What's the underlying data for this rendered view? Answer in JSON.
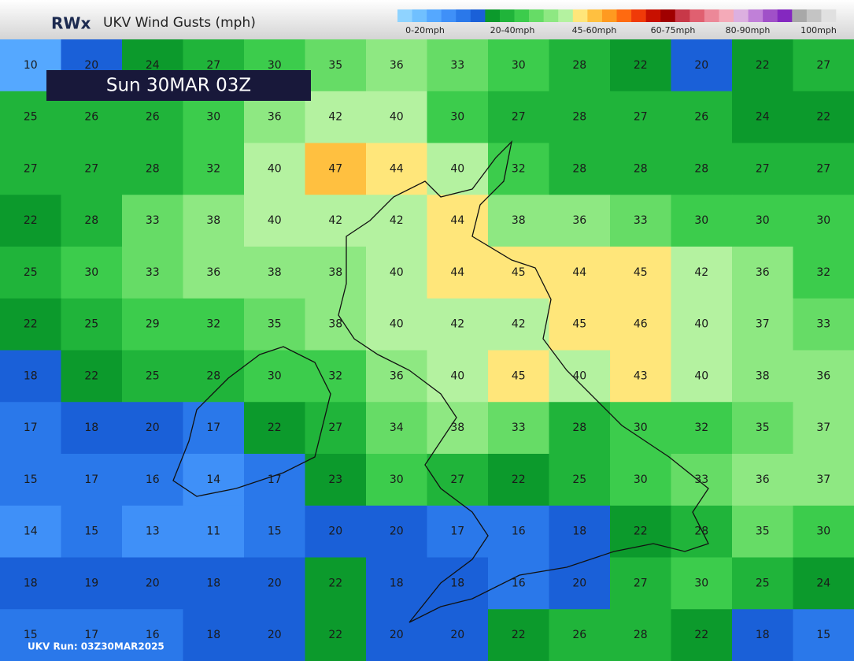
{
  "header": {
    "logo": "RWx",
    "title": "UKV Wind Gusts (mph)"
  },
  "legend": {
    "colors": [
      "#8fd3ff",
      "#70c0ff",
      "#55a8ff",
      "#3f90f8",
      "#2a78ea",
      "#1a60d8",
      "#0c9a2c",
      "#20b43a",
      "#3ccc4c",
      "#66dc66",
      "#8ee882",
      "#b4f2a0",
      "#ffe67a",
      "#ffc040",
      "#ff9a20",
      "#ff6a10",
      "#f03a08",
      "#c81000",
      "#a00000",
      "#c83848",
      "#e06070",
      "#ec8898",
      "#f4aab8",
      "#dcb0e0",
      "#c080d8",
      "#a050c8",
      "#8428c0",
      "#a8a8a8",
      "#c4c4c4",
      "#e0e0e0"
    ],
    "labels": [
      "0-20mph",
      "20-40mph",
      "45-60mph",
      "60-75mph",
      "80-90mph",
      "100mph"
    ]
  },
  "valid_time": "Sun 30MAR 03Z",
  "run": "UKV Run: 03Z30MAR2025",
  "grid": [
    [
      10,
      20,
      24,
      27,
      30,
      35,
      36,
      33,
      30,
      28,
      22,
      20,
      22,
      27
    ],
    [
      25,
      26,
      26,
      30,
      36,
      42,
      40,
      30,
      27,
      28,
      27,
      26,
      24,
      22
    ],
    [
      27,
      27,
      28,
      32,
      40,
      47,
      44,
      40,
      32,
      28,
      28,
      28,
      27,
      27
    ],
    [
      22,
      28,
      33,
      38,
      40,
      42,
      42,
      44,
      38,
      36,
      33,
      30,
      30,
      30
    ],
    [
      25,
      30,
      33,
      36,
      38,
      38,
      40,
      44,
      45,
      44,
      45,
      42,
      36,
      32
    ],
    [
      22,
      25,
      29,
      32,
      35,
      38,
      40,
      42,
      42,
      45,
      46,
      40,
      37,
      33
    ],
    [
      18,
      22,
      25,
      28,
      30,
      32,
      36,
      40,
      45,
      40,
      43,
      40,
      38,
      36
    ],
    [
      17,
      18,
      20,
      17,
      22,
      27,
      34,
      38,
      33,
      28,
      30,
      32,
      35,
      37
    ],
    [
      15,
      17,
      16,
      14,
      17,
      23,
      30,
      27,
      22,
      25,
      30,
      33,
      36,
      37
    ],
    [
      14,
      15,
      13,
      11,
      15,
      20,
      20,
      17,
      16,
      18,
      22,
      28,
      35,
      30
    ],
    [
      18,
      19,
      20,
      18,
      20,
      22,
      18,
      18,
      16,
      20,
      27,
      30,
      25,
      24
    ],
    [
      15,
      17,
      16,
      18,
      20,
      22,
      20,
      20,
      22,
      26,
      28,
      22,
      18,
      15
    ]
  ]
}
